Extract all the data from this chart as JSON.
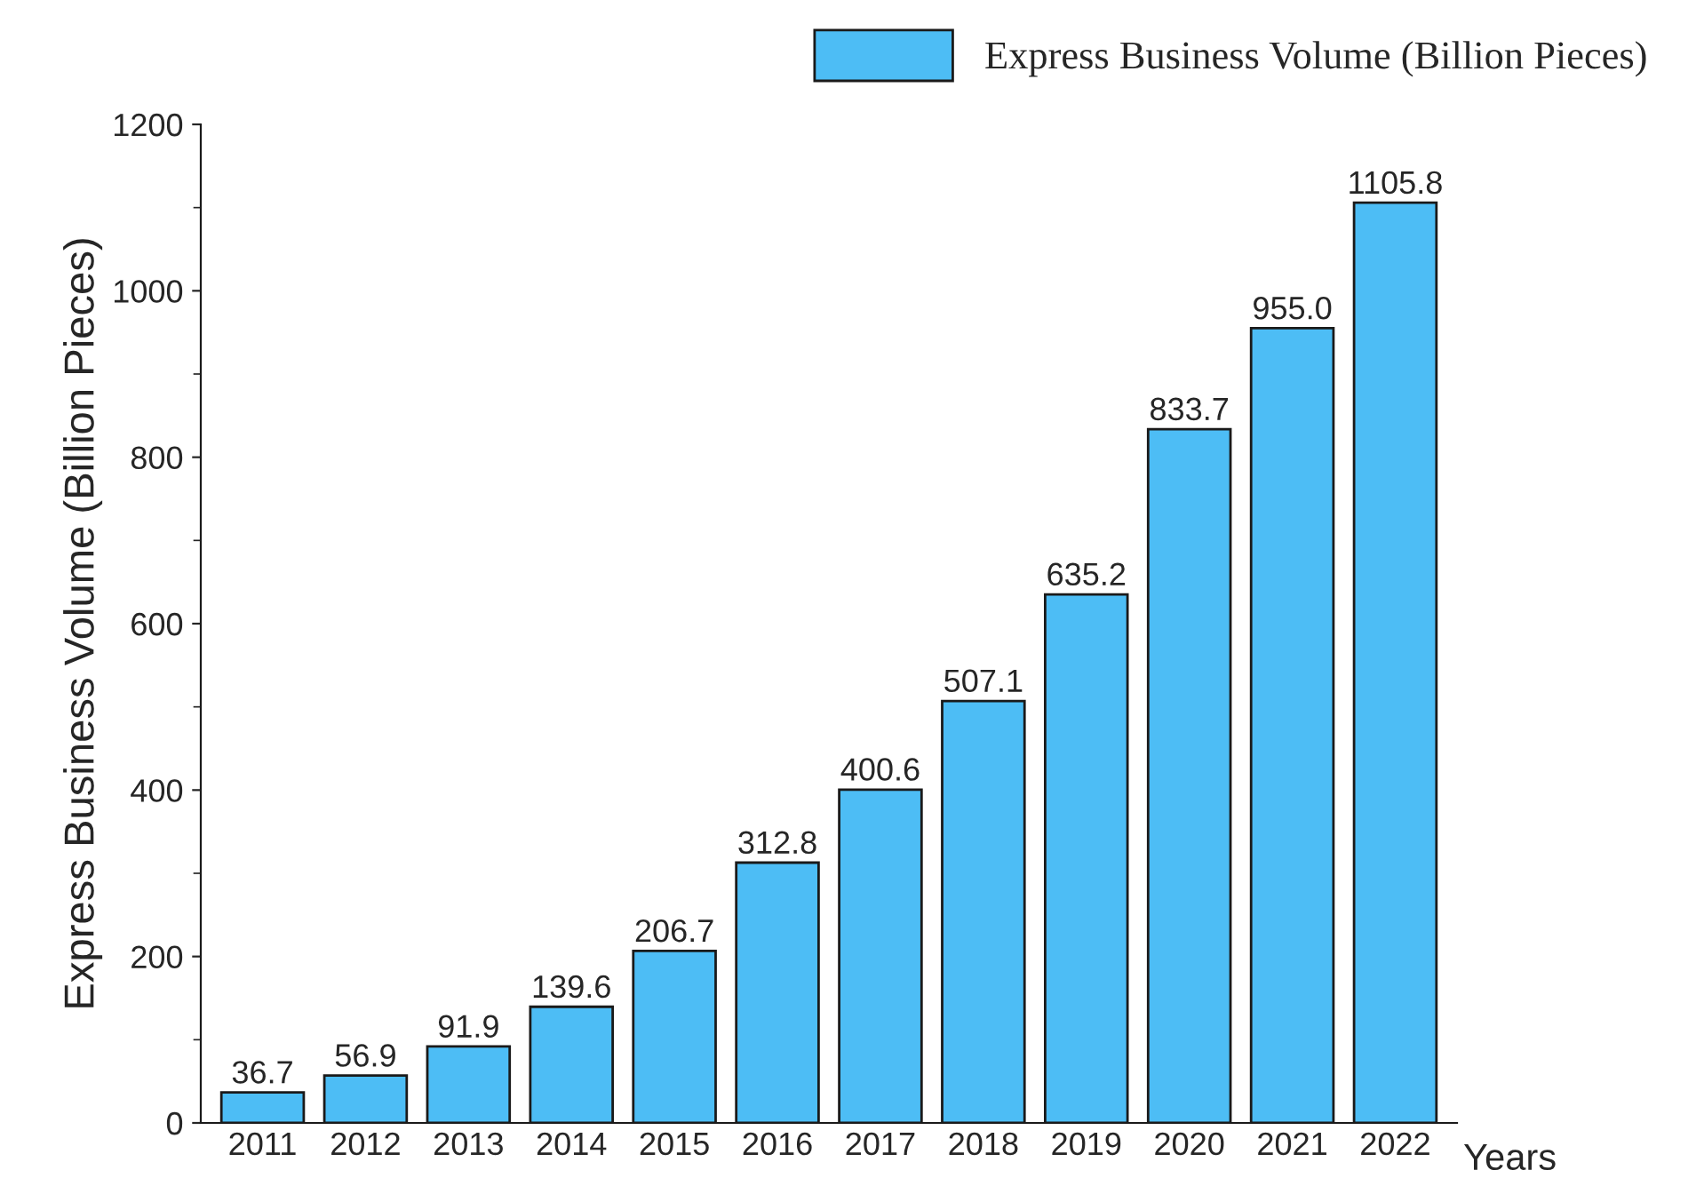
{
  "chart_data": {
    "type": "bar",
    "categories": [
      "2011",
      "2012",
      "2013",
      "2014",
      "2015",
      "2016",
      "2017",
      "2018",
      "2019",
      "2020",
      "2021",
      "2022"
    ],
    "series": [
      {
        "name": "Express Business Volume (Billion Pieces)",
        "color": "#4dbdf5",
        "values": [
          36.7,
          56.9,
          91.9,
          139.6,
          206.7,
          312.8,
          400.6,
          507.1,
          635.2,
          833.7,
          955.0,
          1105.8
        ],
        "value_labels": [
          "36.7",
          "56.9",
          "91.9",
          "139.6",
          "206.7",
          "312.8",
          "400.6",
          "507.1",
          "635.2",
          "833.7",
          "955.0",
          "1105.8"
        ]
      }
    ],
    "xlabel": "Years",
    "ylabel": "Express Business Volume (Billion Pieces)",
    "ylim": [
      0,
      1200
    ],
    "yticks": [
      0,
      200,
      400,
      600,
      800,
      1000,
      1200
    ],
    "legend": "top right",
    "grid": false
  }
}
